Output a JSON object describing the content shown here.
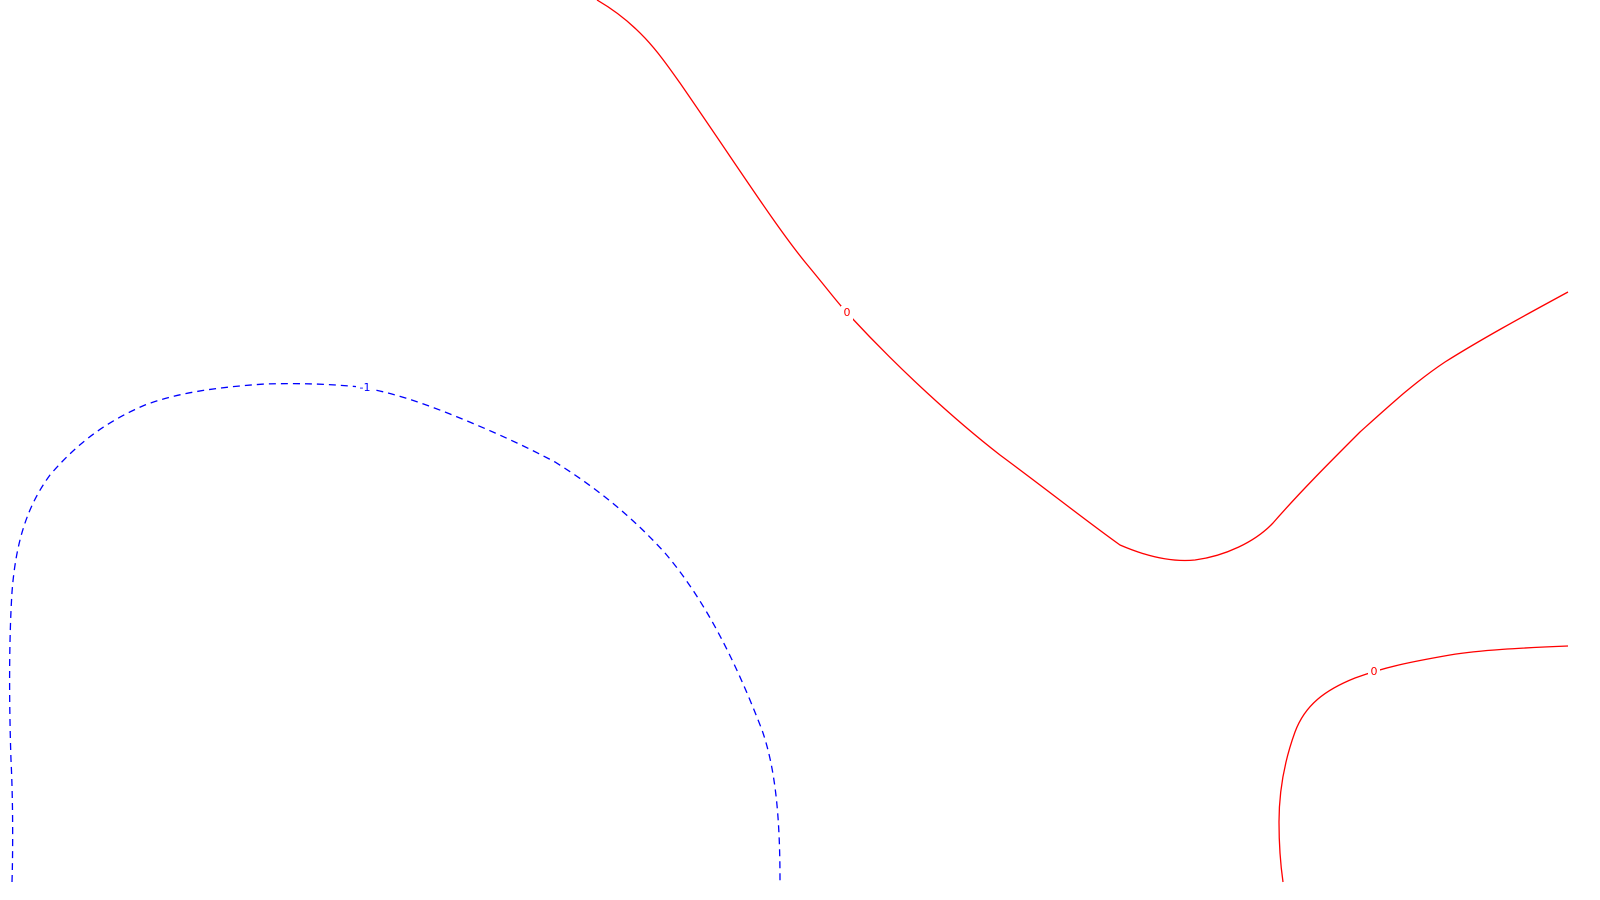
{
  "chart_data": {
    "type": "contour",
    "title": "",
    "xlabel": "",
    "ylabel": "",
    "grid": false,
    "legend": "none",
    "contours": [
      {
        "level_label": "0",
        "color": "#ff0000",
        "style": "solid"
      },
      {
        "level_label": "0",
        "color": "#ff0000",
        "style": "solid"
      },
      {
        "level_label": "-1",
        "color": "#0000ff",
        "style": "dashed"
      }
    ]
  }
}
